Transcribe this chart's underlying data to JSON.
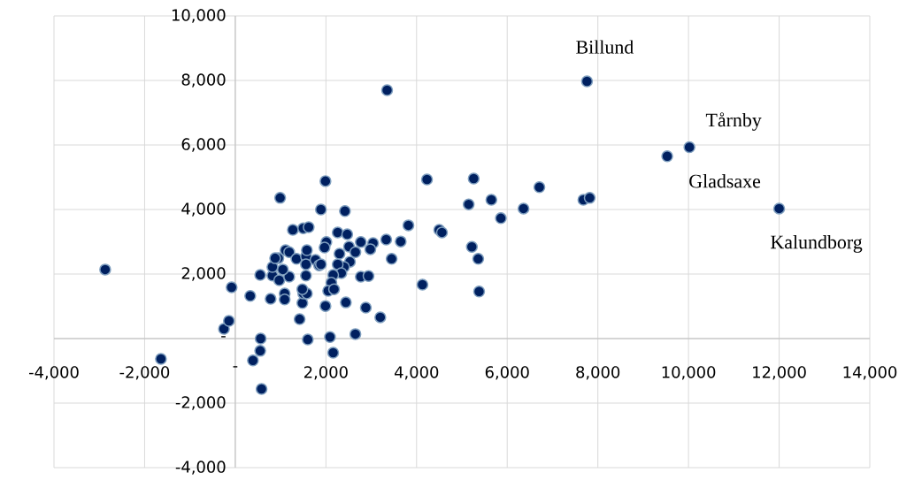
{
  "chart_data": {
    "type": "scatter",
    "x": [
      -2870,
      -1640,
      -250,
      -140,
      -80,
      330,
      390,
      560,
      550,
      580,
      550,
      990,
      1990,
      1890,
      2420,
      1270,
      1500,
      1620,
      2260,
      2470,
      2010,
      1970,
      2770,
      3040,
      2980,
      3330,
      3650,
      3820,
      4230,
      4500,
      4560,
      3450,
      4130,
      2510,
      2650,
      2300,
      2530,
      2400,
      2260,
      2340,
      2160,
      2120,
      2050,
      2180,
      2770,
      2940,
      2440,
      1990,
      2880,
      3200,
      2650,
      2090,
      2160,
      1600,
      1420,
      1480,
      1500,
      1580,
      1480,
      1560,
      1090,
      1090,
      780,
      820,
      970,
      1190,
      1050,
      820,
      950,
      880,
      1110,
      1190,
      1350,
      1560,
      1580,
      1560,
      1770,
      1850,
      1890,
      5260,
      5150,
      5650,
      5860,
      6360,
      6710,
      7680,
      7820,
      7760,
      9530,
      10020,
      12000,
      5220,
      5360,
      5380,
      3350
    ],
    "values": [
      2140,
      -630,
      300,
      550,
      1590,
      1320,
      -680,
      0,
      -380,
      -1560,
      1970,
      4360,
      4880,
      4000,
      3950,
      3370,
      3420,
      3450,
      3290,
      3230,
      2990,
      2820,
      2990,
      2960,
      2770,
      3070,
      3010,
      3510,
      4930,
      3370,
      3290,
      2470,
      1670,
      2850,
      2680,
      2630,
      2380,
      2220,
      2300,
      2030,
      1970,
      1730,
      1480,
      1530,
      1920,
      1940,
      1120,
      1010,
      960,
      660,
      140,
      50,
      -440,
      -30,
      600,
      1100,
      1400,
      1400,
      1530,
      1950,
      1400,
      1210,
      1230,
      1950,
      1810,
      1920,
      2140,
      2220,
      2490,
      2490,
      2740,
      2680,
      2470,
      2550,
      2740,
      2300,
      2440,
      2270,
      2300,
      4960,
      4160,
      4300,
      3730,
      4030,
      4690,
      4300,
      4360,
      7970,
      5650,
      5930,
      4030,
      2840,
      2470,
      1460,
      7700
    ],
    "color": "#002060",
    "marker": "circle",
    "xlim": [
      -4000,
      14000
    ],
    "ylim": [
      -4000,
      10000
    ],
    "xticks": [
      {
        "value": -4000,
        "label": "-4,000"
      },
      {
        "value": -2000,
        "label": "-2,000"
      },
      {
        "value": 0,
        "label": "-"
      },
      {
        "value": 2000,
        "label": "2,000"
      },
      {
        "value": 4000,
        "label": "4,000"
      },
      {
        "value": 6000,
        "label": "6,000"
      },
      {
        "value": 8000,
        "label": "8,000"
      },
      {
        "value": 10000,
        "label": "10,000"
      },
      {
        "value": 12000,
        "label": "12,000"
      },
      {
        "value": 14000,
        "label": "14,000"
      }
    ],
    "yticks": [
      {
        "value": -4000,
        "label": "-4,000"
      },
      {
        "value": -2000,
        "label": "-2,000"
      },
      {
        "value": 0,
        "label": "-"
      },
      {
        "value": 2000,
        "label": "2,000"
      },
      {
        "value": 4000,
        "label": "4,000"
      },
      {
        "value": 6000,
        "label": "6,000"
      },
      {
        "value": 8000,
        "label": "8,000"
      },
      {
        "value": 10000,
        "label": "10,000"
      }
    ],
    "grid": true,
    "annotations": [
      {
        "text": "Billund",
        "x": 7760,
        "y": 7970
      },
      {
        "text": "Tårnby",
        "x": 10020,
        "y": 5930
      },
      {
        "text": "Gladsaxe",
        "x": 9530,
        "y": 5650
      },
      {
        "text": "Kalundborg",
        "x": 12000,
        "y": 4030
      }
    ]
  }
}
